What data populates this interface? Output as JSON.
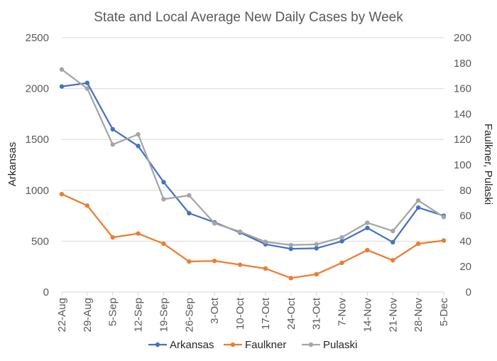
{
  "chart_data": {
    "type": "line",
    "title": "State and Local Average New Daily Cases by Week",
    "categories": [
      "22-Aug",
      "29-Aug",
      "5-Sep",
      "12-Sep",
      "19-Sep",
      "26-Sep",
      "3-Oct",
      "10-Oct",
      "17-Oct",
      "24-Oct",
      "31-Oct",
      "7-Nov",
      "14-Nov",
      "21-Nov",
      "28-Nov",
      "5-Dec"
    ],
    "ylabel": "Arkansas",
    "y2label": "Faulkner, Pulaski",
    "ylim": [
      0,
      2500
    ],
    "y2lim": [
      0,
      200
    ],
    "yticks": [
      "0",
      "500",
      "1000",
      "1500",
      "2000",
      "2500"
    ],
    "y2ticks": [
      "0",
      "20",
      "40",
      "60",
      "80",
      "100",
      "120",
      "140",
      "160",
      "180",
      "200"
    ],
    "gridlines": true,
    "legend_position": "bottom",
    "series": [
      {
        "name": "Arkansas",
        "axis": "left",
        "color": "#4472C4",
        "values": [
          2020,
          2055,
          1600,
          1435,
          1080,
          775,
          685,
          585,
          470,
          425,
          430,
          500,
          630,
          490,
          830,
          750
        ]
      },
      {
        "name": "Faulkner",
        "axis": "right",
        "color": "#ED7D31",
        "values": [
          77,
          68,
          43,
          46,
          38,
          24,
          24.5,
          21.5,
          18.5,
          11,
          14,
          23,
          33,
          25,
          38,
          40.5
        ]
      },
      {
        "name": "Pulaski",
        "axis": "right",
        "color": "#A5A5A5",
        "values": [
          175,
          160,
          116,
          124,
          73,
          76,
          54,
          47.5,
          39.5,
          37,
          37.5,
          43,
          54.5,
          48,
          72,
          59
        ]
      }
    ]
  }
}
